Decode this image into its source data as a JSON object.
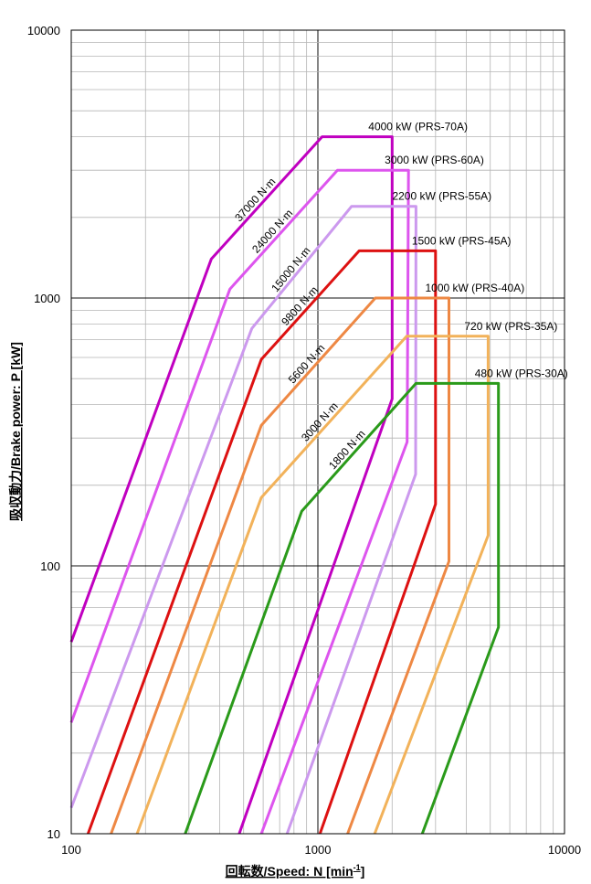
{
  "chart_data": {
    "type": "line",
    "x_scale": "log",
    "y_scale": "log",
    "xlim": [
      100,
      10000
    ],
    "ylim": [
      10,
      10000
    ],
    "xlabel": "回転数/Speed: N [min",
    "xlabel_sup": "-1",
    "xlabel_end": "]",
    "ylabel": "吸収動力/Brake power: P [kW]",
    "x_ticks": [
      "100",
      "1000",
      "10000"
    ],
    "y_ticks": [
      "10",
      "100",
      "1000",
      "10000"
    ],
    "grid": true,
    "series": [
      {
        "name": "4000 kW (PRS-70A)",
        "color": "#c000c0",
        "torque_label": "37000 N·m",
        "outer": [
          [
            100,
            52
          ],
          [
            370,
            1400
          ],
          [
            1040,
            4000
          ],
          [
            2000,
            4000
          ],
          [
            2000,
            420
          ],
          [
            480,
            10
          ]
        ]
      },
      {
        "name": "3000 kW (PRS-60A)",
        "color": "#dd55ee",
        "torque_label": "24000 N·m",
        "outer": [
          [
            100,
            26
          ],
          [
            440,
            1080
          ],
          [
            1200,
            3000
          ],
          [
            2330,
            3000
          ],
          [
            2300,
            290
          ],
          [
            590,
            10
          ]
        ]
      },
      {
        "name": "2200 kW (PRS-55A)",
        "color": "#cc99ee",
        "torque_label": "15000 N·m",
        "outer": [
          [
            100,
            12.5
          ],
          [
            540,
            770
          ],
          [
            1370,
            2200
          ],
          [
            2500,
            2200
          ],
          [
            2490,
            220
          ],
          [
            750,
            10
          ]
        ]
      },
      {
        "name": "1500 kW (PRS-45A)",
        "color": "#dd1111",
        "torque_label": "9800 N·m",
        "outer": [
          [
            117,
            10
          ],
          [
            590,
            590
          ],
          [
            1470,
            1500
          ],
          [
            3000,
            1500
          ],
          [
            3000,
            170
          ],
          [
            1020,
            10
          ]
        ]
      },
      {
        "name": "1000 kW (PRS-40A)",
        "color": "#ee8844",
        "torque_label": "5600 N·m",
        "outer": [
          [
            145,
            10
          ],
          [
            590,
            335
          ],
          [
            1710,
            1000
          ],
          [
            3400,
            1000
          ],
          [
            3400,
            104
          ],
          [
            1320,
            10
          ]
        ]
      },
      {
        "name": "720 kW (PRS-35A)",
        "color": "#f2b25a",
        "torque_label": "3000 N·m",
        "outer": [
          [
            185,
            10
          ],
          [
            590,
            180
          ],
          [
            2290,
            720
          ],
          [
            4900,
            720
          ],
          [
            4900,
            130
          ],
          [
            1700,
            10
          ]
        ]
      },
      {
        "name": "480 kW (PRS-30A)",
        "color": "#2a9a1a",
        "torque_label": "1800 N·m",
        "outer": [
          [
            290,
            10
          ],
          [
            860,
            160
          ],
          [
            2500,
            480
          ],
          [
            5400,
            480
          ],
          [
            5400,
            59
          ],
          [
            2650,
            10
          ]
        ]
      }
    ]
  }
}
